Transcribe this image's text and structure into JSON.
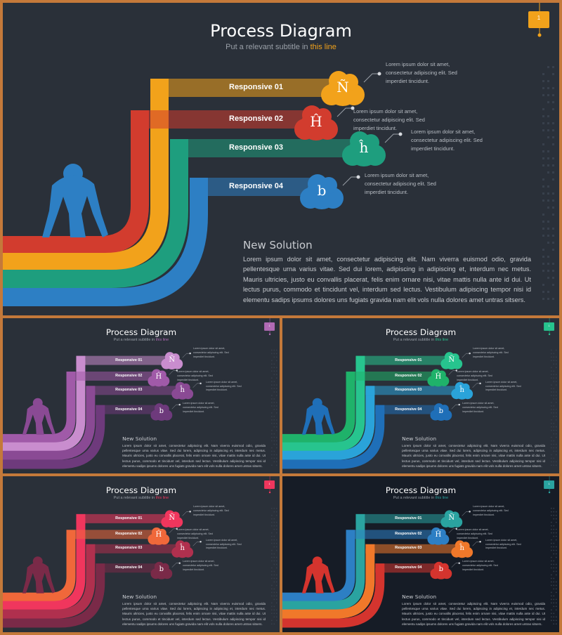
{
  "title": "Process Diagram",
  "subtitle_prefix": "Put a relevant subtitle in",
  "subtitle_highlight": "this line",
  "steps": [
    {
      "label": "Responsive 01",
      "glyph": "Ñ"
    },
    {
      "label": "Responsive 02",
      "glyph": "Ĥ"
    },
    {
      "label": "Responsive 03",
      "glyph": "ĥ"
    },
    {
      "label": "Responsive 04",
      "glyph": "b"
    }
  ],
  "callout_lines": [
    "Lorem ipsum dolor sit amet,",
    "consectetur adipiscing elit. Sed",
    "imperdiet tincidunt."
  ],
  "solution": {
    "title": "New Solution",
    "body": "Lorem ipsum dolor sit amet, consectetur adipiscing elit. Nam viverra euismod odio, gravida pellentesque urna varius vitae. Sed dui lorem, adipiscing in adipiscing et, interdum nec metus. Mauris ultricies, justo eu convallis placerat, felis enim ornare nisi, vitae mattis nulla ante id dui. Ut lectus purus, commodo et tincidunt vel, interdum sed lectus. Vestibulum adipiscing tempor nisi id elementu sadips ipsums dolores uns fugiats gravida nam elit vols nulla dolores amet untras sitsers."
  },
  "page_number": "1",
  "themes": [
    {
      "name": "warm",
      "accent": "#f2a21b",
      "colors": [
        "#f2a21b",
        "#d23c2e",
        "#1e9e7e",
        "#2d7fc4"
      ],
      "runner": "#2d7fc4",
      "bg": "#2a3039"
    },
    {
      "name": "purple",
      "accent": "#b06ab4",
      "colors": [
        "#c98dce",
        "#a05aa8",
        "#8a4a94",
        "#6e3a7c"
      ],
      "runner": "#8a4a94",
      "bg": "#2a3039"
    },
    {
      "name": "green-blue",
      "accent": "#27c48e",
      "colors": [
        "#27c48e",
        "#1fb26a",
        "#2aa3d9",
        "#1f6fb8"
      ],
      "runner": "#1f6fb8",
      "bg": "#2a3039"
    },
    {
      "name": "red-pink",
      "accent": "#f0365d",
      "colors": [
        "#f0365d",
        "#f0683a",
        "#b0304e",
        "#7a2a48"
      ],
      "runner": "#7a2a48",
      "bg": "#2a3039"
    },
    {
      "name": "dark-mixed",
      "accent": "#2aa3a0",
      "colors": [
        "#2aa3a0",
        "#2d7fc4",
        "#f0782a",
        "#d4342e"
      ],
      "runner": "#d4342e",
      "bg": "#161c26"
    }
  ]
}
